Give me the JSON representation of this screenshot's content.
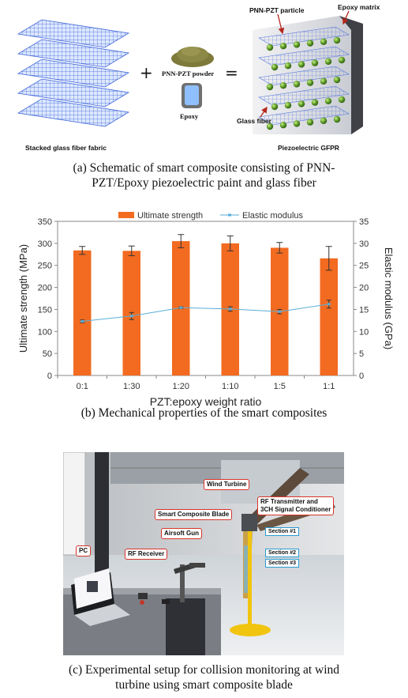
{
  "panel_a": {
    "label_fabric": "Stacked glass fiber fabric",
    "label_powder": "PNN-PZT powder",
    "label_epoxy": "Epoxy",
    "label_particle": "PNN-PZT particle",
    "label_matrix": "Epoxy matrix",
    "label_glass": "Glass fiber",
    "label_gfpr": "Piezoelectric GFPR",
    "plus": "+",
    "equals": "=",
    "caption_line1": "(a) Schematic of smart composite consisting of PNN-",
    "caption_line2": "PZT/Epoxy piezoelectric paint and glass fiber"
  },
  "panel_b": {
    "caption": "(b) Mechanical properties of the smart composites"
  },
  "chart_data": {
    "type": "bar",
    "categories": [
      "0:1",
      "1:30",
      "1:20",
      "1:10",
      "1:5",
      "1:1"
    ],
    "xlabel": "PZT:epoxy weight ratio",
    "ylabel": "Ultimate strength (MPa)",
    "y2label": "Elastic modulus (GPa)",
    "ylim": [
      0,
      350
    ],
    "y2lim": [
      0,
      35
    ],
    "yticks": [
      "0",
      "50",
      "100",
      "150",
      "200",
      "250",
      "300",
      "350"
    ],
    "y2ticks": [
      "0",
      "5",
      "10",
      "15",
      "20",
      "25",
      "30",
      "35"
    ],
    "legend_placement": "top",
    "series": [
      {
        "name": "Ultimate strength",
        "type": "bar",
        "axis": "left",
        "color": "#f26b21",
        "values": [
          284,
          283,
          305,
          300,
          290,
          266
        ],
        "errors": [
          9,
          11,
          15,
          17,
          12,
          27
        ]
      },
      {
        "name": "Elastic modulus",
        "type": "line",
        "axis": "right",
        "color": "#5aaed8",
        "values": [
          12.3,
          13.5,
          15.4,
          15.1,
          14.5,
          16.2
        ],
        "errors": [
          0.3,
          0.8,
          0.2,
          0.5,
          0.5,
          0.9
        ]
      }
    ]
  },
  "panel_c": {
    "call_wind_turbine": "Wind Turbine",
    "call_rf_tx_1": "RF Transmitter and",
    "call_rf_tx_2": "3CH Signal Conditioner",
    "call_blade": "Smart Composite Blade",
    "call_airsoft": "Airsoft Gun",
    "call_pc": "PC",
    "call_rf_rx": "RF Receiver",
    "sec1": "Section #1",
    "sec2": "Section #2",
    "sec3": "Section #3",
    "caption_line1": "(c) Experimental setup for collision monitoring at wind",
    "caption_line2": "turbine using smart composite blade"
  }
}
